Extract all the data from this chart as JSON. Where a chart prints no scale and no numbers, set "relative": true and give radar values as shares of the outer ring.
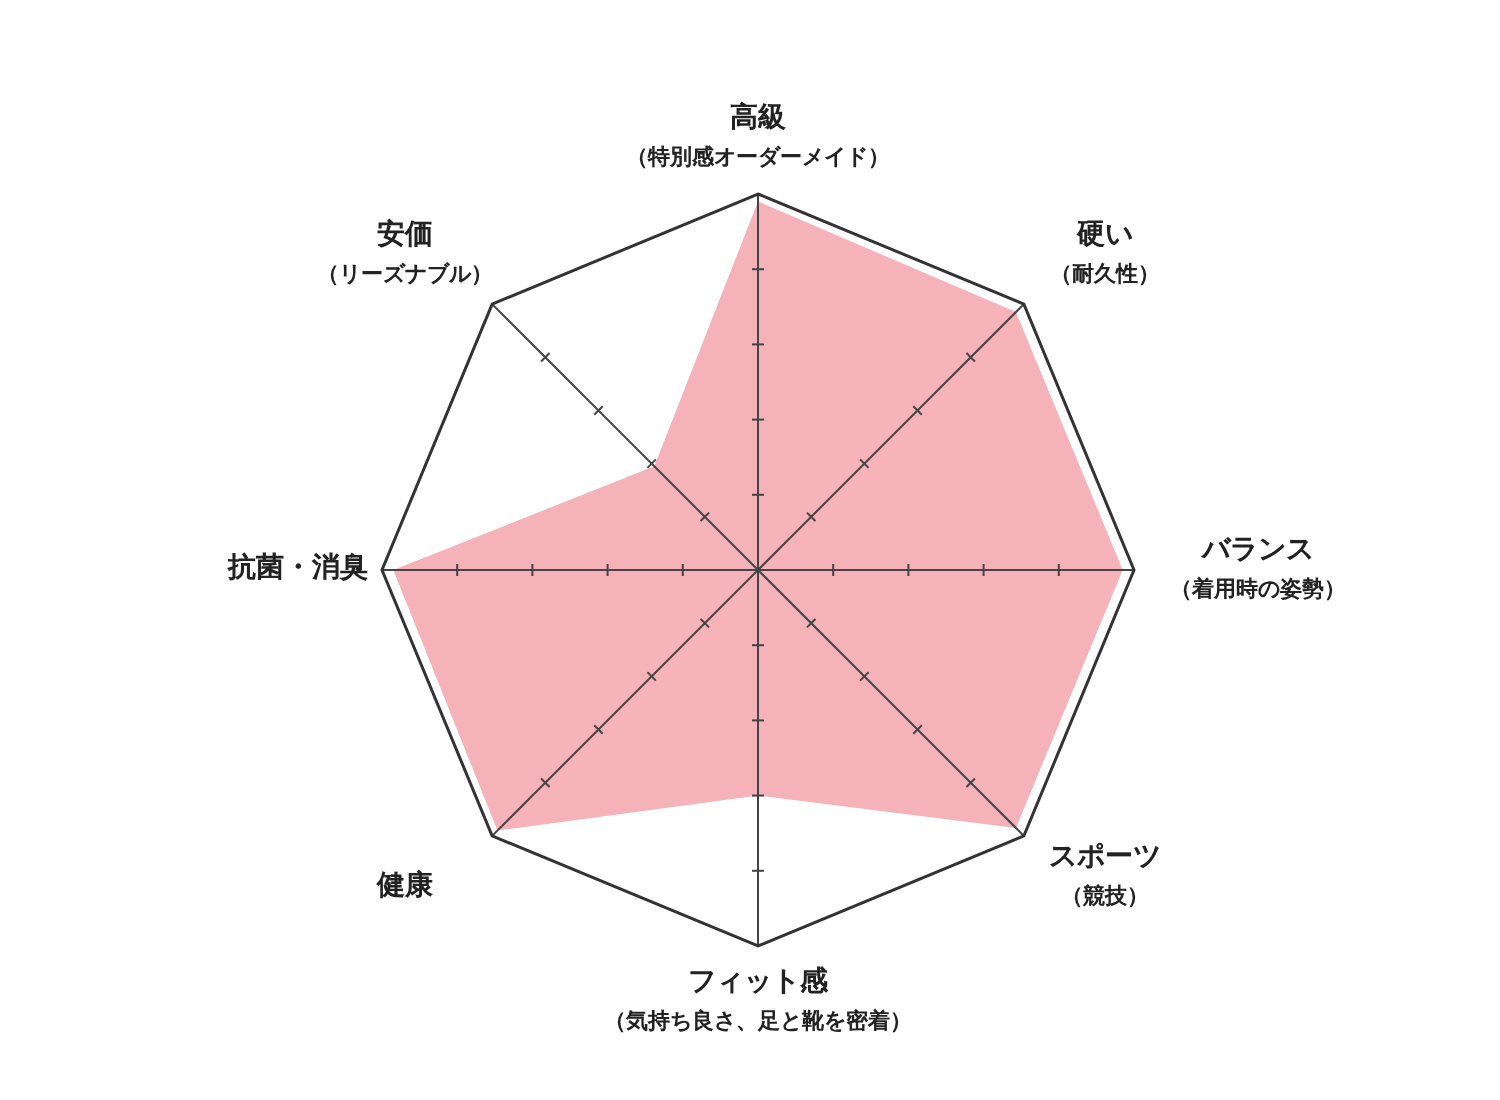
{
  "chart_data": {
    "type": "radar",
    "relative": true,
    "grid": true,
    "categories": [
      "高級（特別感オーダーメイド）",
      "硬い（耐久性）",
      "バランス（着用時の姿勢）",
      "スポーツ（競技）",
      "フィット感（気持ち良さ、足と靴を密着）",
      "健康",
      "抗菌・消臭",
      "安価（リーズナブル）"
    ],
    "series": [
      {
        "color": "#f5b2b9",
        "values": [
          0.98,
          0.97,
          0.97,
          0.97,
          0.6,
          0.98,
          0.97,
          0.39
        ]
      }
    ]
  }
}
